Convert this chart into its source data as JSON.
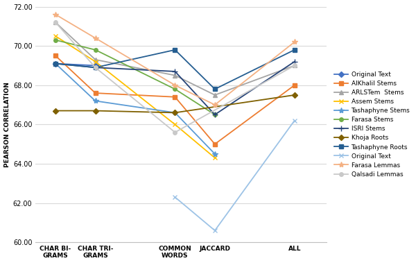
{
  "x_labels": [
    "CHAR BI-\nGRAMS",
    "CHAR TRI-\nGRAMS",
    "COMMON\nWORDS",
    "JACCARD",
    "ALL"
  ],
  "x_positions": [
    0,
    1,
    3,
    4,
    6
  ],
  "ylim": [
    60.0,
    72.0
  ],
  "yticks": [
    60.0,
    62.0,
    64.0,
    66.0,
    68.0,
    70.0,
    72.0
  ],
  "ylabel": "PEARSON CORRELATION",
  "series": [
    {
      "label": "Original Text",
      "color": "#4472C4",
      "marker": "D",
      "markersize": 4,
      "linewidth": 1.3,
      "data": {
        "0": 69.1,
        "1": 69.0
      }
    },
    {
      "label": "AlKhalil Stems",
      "color": "#ED7D31",
      "marker": "s",
      "markersize": 4,
      "linewidth": 1.3,
      "data": {
        "0": 69.5,
        "1": 67.6,
        "3": 67.4,
        "4": 65.0,
        "6": 68.0
      }
    },
    {
      "label": "ARLSTem  Stems",
      "color": "#A5A5A5",
      "marker": "^",
      "markersize": 5,
      "linewidth": 1.3,
      "data": {
        "0": 71.2,
        "1": 69.3,
        "3": 68.5,
        "4": 67.5,
        "6": 69.0
      }
    },
    {
      "label": "Assem Stems",
      "color": "#FFC000",
      "marker": "x",
      "markersize": 5,
      "linewidth": 1.3,
      "data": {
        "0": 70.5,
        "1": 69.2,
        "3": 66.0,
        "4": 64.3
      }
    },
    {
      "label": "Tashaphyne Stems",
      "color": "#5B9BD5",
      "marker": "*",
      "markersize": 6,
      "linewidth": 1.3,
      "data": {
        "0": 69.1,
        "1": 67.2,
        "3": 66.6,
        "4": 64.5
      }
    },
    {
      "label": "Farasa Stems",
      "color": "#70AD47",
      "marker": "o",
      "markersize": 4,
      "linewidth": 1.3,
      "data": {
        "0": 70.3,
        "1": 69.8,
        "3": 67.8,
        "4": 66.5
      }
    },
    {
      "label": "ISRI Stems",
      "color": "#264478",
      "marker": "+",
      "markersize": 6,
      "linewidth": 1.3,
      "data": {
        "0": 69.1,
        "1": 68.9,
        "3": 68.7,
        "4": 66.5,
        "6": 69.2
      }
    },
    {
      "label": "Khoja Roots",
      "color": "#7F6000",
      "marker": "D",
      "markersize": 4,
      "linewidth": 1.3,
      "data": {
        "0": 66.7,
        "1": 66.7,
        "3": 66.6,
        "6": 67.5
      }
    },
    {
      "label": "Tashaphyne Roots",
      "color": "#255E91",
      "marker": "s",
      "markersize": 4,
      "linewidth": 1.3,
      "data": {
        "0": 69.1,
        "1": 68.9,
        "3": 69.8,
        "4": 67.8,
        "6": 69.8
      }
    },
    {
      "label": "Original Text",
      "color": "#9DC3E6",
      "marker": "x",
      "markersize": 5,
      "linewidth": 1.3,
      "data": {
        "3": 62.3,
        "4": 60.6,
        "6": 66.2
      }
    },
    {
      "label": "Farasa Lemmas",
      "color": "#F4B183",
      "marker": "*",
      "markersize": 6,
      "linewidth": 1.3,
      "data": {
        "0": 71.6,
        "1": 70.4,
        "3": 68.0,
        "4": 67.0,
        "6": 70.2
      }
    },
    {
      "label": "Qalsadi Lemmas",
      "color": "#C9C9C9",
      "marker": "o",
      "markersize": 4,
      "linewidth": 1.3,
      "data": {
        "0": 71.2,
        "1": 68.9,
        "3": 65.6,
        "6": 69.0
      }
    }
  ],
  "figsize": [
    6.0,
    3.79
  ],
  "dpi": 100,
  "background_color": "#FFFFFF",
  "grid_color": "#D9D9D9"
}
